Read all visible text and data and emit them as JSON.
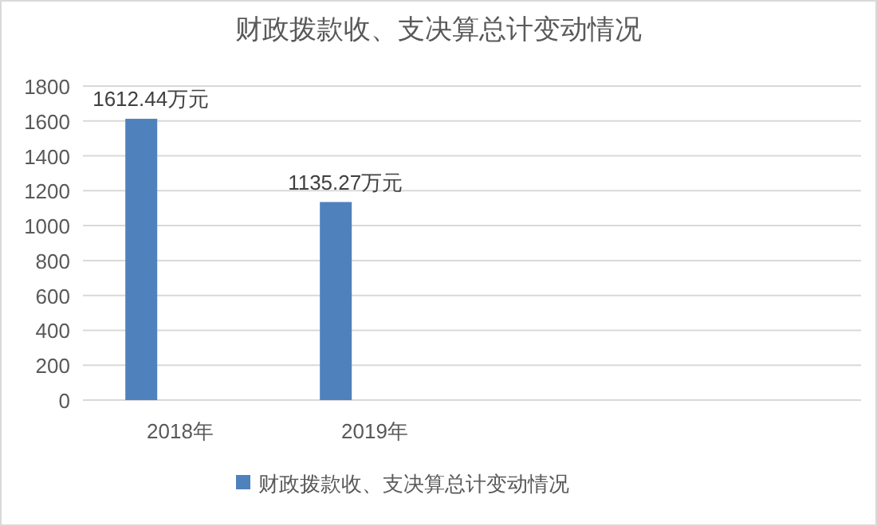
{
  "chart_data": {
    "type": "bar",
    "title": "财政拨款收、支决算总计变动情况",
    "categories": [
      "2018年",
      "2019年",
      null,
      null
    ],
    "series": [
      {
        "name": "财政拨款收、支决算总计变动情况",
        "color": "#4f81bd",
        "values": [
          1612.44,
          1135.27,
          null,
          null
        ],
        "value_labels": [
          "1612.44万元",
          "1135.27万元",
          null,
          null
        ]
      }
    ],
    "ylim": [
      0,
      1800
    ],
    "yticks": [
      0,
      200,
      400,
      600,
      800,
      1000,
      1200,
      1400,
      1600,
      1800
    ],
    "grid": "y",
    "legend": "bottom"
  }
}
